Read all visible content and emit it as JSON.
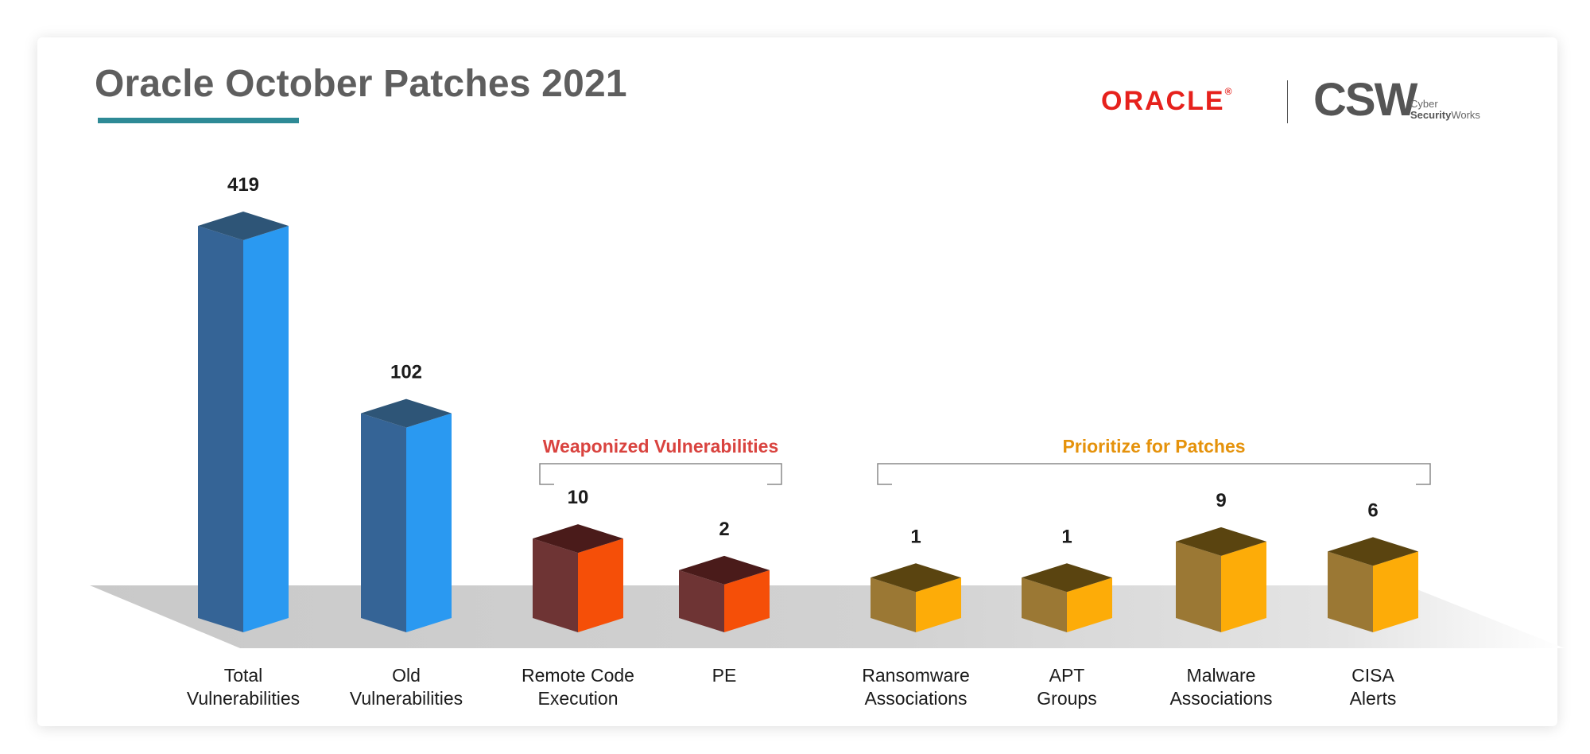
{
  "page": {
    "title": "Oracle October Patches 2021",
    "logo_oracle": "ORACLE",
    "logo_oracle_mark": "®",
    "logo_csw": "CSW",
    "logo_csw_sub_1": "Cyber",
    "logo_csw_sub_2a": "Security",
    "logo_csw_sub_2b": "Works"
  },
  "colors": {
    "title_underline": "#2e8a96",
    "blue_top": "#2e5577",
    "blue_left": "#356496",
    "blue_right": "#2a99f1",
    "red_top": "#4a1b1a",
    "red_left": "#6e3434",
    "red_right": "#f54f08",
    "gold_top": "#5a4410",
    "gold_left": "#9b7834",
    "gold_right": "#fdac08",
    "weaponized_label": "#d9433f",
    "prioritize_label": "#e5920b"
  },
  "chart_data": {
    "type": "bar",
    "title": "Oracle October Patches 2021",
    "categories": [
      "Total Vulnerabilities",
      "Old Vulnerabilities",
      "Remote Code Execution",
      "PE",
      "Ransomware Associations",
      "APT Groups",
      "Malware Associations",
      "CISA Alerts"
    ],
    "category_lines": [
      [
        "Total",
        "Vulnerabilities"
      ],
      [
        "Old",
        "Vulnerabilities"
      ],
      [
        "Remote Code",
        "Execution"
      ],
      [
        "PE"
      ],
      [
        "Ransomware",
        "Associations"
      ],
      [
        "APT",
        "Groups"
      ],
      [
        "Malware",
        "Associations"
      ],
      [
        "CISA",
        "Alerts"
      ]
    ],
    "values": [
      419,
      102,
      10,
      2,
      1,
      1,
      9,
      6
    ],
    "colors": [
      "blue",
      "blue",
      "red",
      "red",
      "gold",
      "gold",
      "gold",
      "gold"
    ],
    "groups": [
      {
        "label": "Weaponized Vulnerabilities",
        "from": 2,
        "to": 3,
        "color": "weaponized_label"
      },
      {
        "label": "Prioritize for Patches",
        "from": 4,
        "to": 7,
        "color": "prioritize_label"
      }
    ],
    "legend": "none",
    "grid": false
  }
}
